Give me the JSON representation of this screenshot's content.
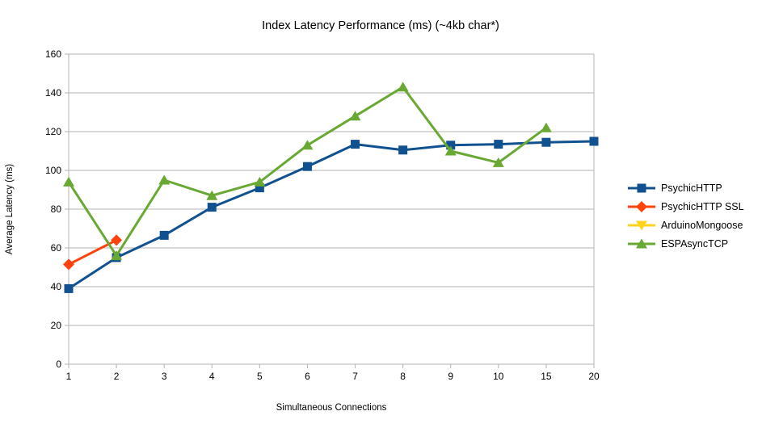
{
  "chart_data": {
    "type": "line",
    "title": "Index Latency Performance (ms) (~4kb char*)",
    "xlabel": "Simultaneous Connections",
    "ylabel": "Average Latency (ms)",
    "categories": [
      "1",
      "2",
      "3",
      "4",
      "5",
      "6",
      "7",
      "8",
      "9",
      "10",
      "15",
      "20"
    ],
    "ylim": [
      0,
      160
    ],
    "ytick_step": 20,
    "grid": "horizontal",
    "legend_position": "right",
    "axis_color": "#b3b3b3",
    "series": [
      {
        "name": "PsychicHTTP",
        "color": "#11518f",
        "marker": "square",
        "values": [
          39,
          55,
          66.5,
          81,
          91,
          102,
          113.5,
          110.5,
          113,
          113.5,
          114.5,
          115
        ]
      },
      {
        "name": "PsychicHTTP SSL",
        "color": "#ff420e",
        "marker": "diamond",
        "values": [
          51.5,
          64,
          null,
          null,
          null,
          null,
          null,
          null,
          null,
          null,
          null,
          null
        ]
      },
      {
        "name": "ArduinoMongoose",
        "color": "#ffd320",
        "marker": "triangle-down",
        "values": [
          null,
          null,
          null,
          null,
          null,
          null,
          null,
          null,
          null,
          null,
          null,
          null
        ]
      },
      {
        "name": "ESPAsyncTCP",
        "color": "#69a832",
        "marker": "triangle-up",
        "values": [
          94,
          56,
          95,
          87,
          94,
          113,
          128,
          143,
          110,
          104,
          122,
          null
        ]
      }
    ]
  }
}
